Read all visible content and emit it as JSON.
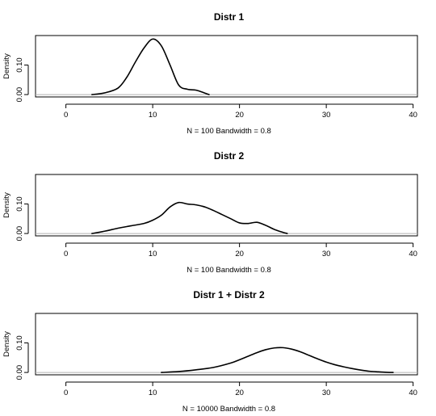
{
  "chart_data": [
    {
      "type": "line",
      "title": "Distr 1",
      "xlabel": "N = 100   Bandwidth = 0.8",
      "ylabel": "Density",
      "xlim": [
        -3.5,
        40.5
      ],
      "ylim": [
        -0.008,
        0.2
      ],
      "xticks": [
        "0",
        "10",
        "20",
        "30",
        "40"
      ],
      "yticks": [
        "0.00",
        "0.10"
      ],
      "grid": false,
      "legend": "none",
      "baseline": 0,
      "series": [
        {
          "x": [
            3,
            4.5,
            6,
            7,
            8,
            9,
            10,
            11,
            12,
            13,
            14,
            15,
            16,
            16.5
          ],
          "y": [
            0,
            0.006,
            0.022,
            0.058,
            0.11,
            0.158,
            0.188,
            0.165,
            0.1,
            0.032,
            0.018,
            0.015,
            0.005,
            0.0
          ]
        }
      ]
    },
    {
      "type": "line",
      "title": "Distr 2",
      "xlabel": "N = 100   Bandwidth = 0.8",
      "ylabel": "Density",
      "xlim": [
        -3.5,
        40.5
      ],
      "ylim": [
        -0.008,
        0.2
      ],
      "xticks": [
        "0",
        "10",
        "20",
        "30",
        "40"
      ],
      "yticks": [
        "0.00",
        "0.10"
      ],
      "grid": false,
      "legend": "none",
      "baseline": 0,
      "series": [
        {
          "x": [
            3,
            4.5,
            6,
            7.5,
            9,
            10,
            11,
            12,
            13,
            14,
            15,
            16,
            17,
            18,
            19,
            20,
            21,
            22,
            23,
            24,
            25,
            25.5
          ],
          "y": [
            0,
            0.008,
            0.018,
            0.026,
            0.034,
            0.045,
            0.062,
            0.09,
            0.105,
            0.1,
            0.097,
            0.09,
            0.078,
            0.064,
            0.05,
            0.036,
            0.034,
            0.038,
            0.028,
            0.014,
            0.004,
            0.0
          ]
        }
      ]
    },
    {
      "type": "line",
      "title": "Distr 1 + Distr 2",
      "xlabel": "N = 10000   Bandwidth = 0.8",
      "ylabel": "Density",
      "xlim": [
        -3.5,
        40.5
      ],
      "ylim": [
        -0.008,
        0.2
      ],
      "xticks": [
        "0",
        "10",
        "20",
        "30",
        "40"
      ],
      "yticks": [
        "0.00",
        "0.10"
      ],
      "grid": false,
      "legend": "none",
      "baseline": 0,
      "series": [
        {
          "x": [
            11,
            13,
            15,
            17,
            19,
            20,
            21,
            22,
            23,
            24,
            25,
            26,
            27,
            28,
            29,
            30,
            31,
            32,
            33,
            34,
            35,
            36,
            37,
            37.7
          ],
          "y": [
            0,
            0.003,
            0.009,
            0.017,
            0.032,
            0.043,
            0.055,
            0.067,
            0.077,
            0.083,
            0.084,
            0.079,
            0.07,
            0.058,
            0.046,
            0.035,
            0.026,
            0.019,
            0.013,
            0.008,
            0.004,
            0.002,
            0.0005,
            0.0
          ]
        }
      ]
    }
  ]
}
